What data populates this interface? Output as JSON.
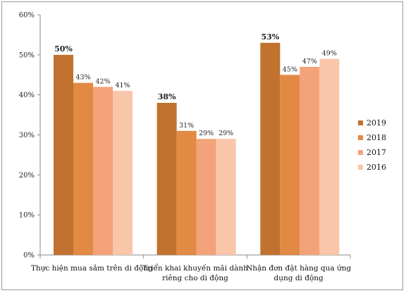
{
  "chart_data": {
    "type": "bar",
    "categories": [
      [
        "Thực hiện mua sắm trên di động"
      ],
      [
        "Triển khai khuyến mãi dành",
        "riêng cho di động"
      ],
      [
        "Nhận đơn đặt hàng qua ứng",
        "dụng di động"
      ]
    ],
    "series": [
      {
        "name": "2019",
        "color": "#c0722e",
        "values": [
          50,
          38,
          53
        ],
        "labels": [
          "50%",
          "38%",
          "53%"
        ],
        "label_bold": true
      },
      {
        "name": "2018",
        "color": "#e28a44",
        "values": [
          43,
          31,
          45
        ],
        "labels": [
          "43%",
          "31%",
          "45%"
        ],
        "label_bold": false
      },
      {
        "name": "2017",
        "color": "#f4a27a",
        "values": [
          42,
          29,
          47
        ],
        "labels": [
          "42%",
          "29%",
          "47%"
        ],
        "label_bold": false
      },
      {
        "name": "2016",
        "color": "#f9c6aa",
        "values": [
          41,
          29,
          49
        ],
        "labels": [
          "41%",
          "29%",
          "49%"
        ],
        "label_bold": false
      }
    ],
    "yticks": [
      0,
      10,
      20,
      30,
      40,
      50,
      60
    ],
    "ytick_labels": [
      "0%",
      "10%",
      "20%",
      "30%",
      "40%",
      "50%",
      "60%"
    ],
    "ylim": [
      0,
      60
    ],
    "grid": false,
    "legend": "right",
    "title": "",
    "xlabel": "",
    "ylabel": ""
  }
}
